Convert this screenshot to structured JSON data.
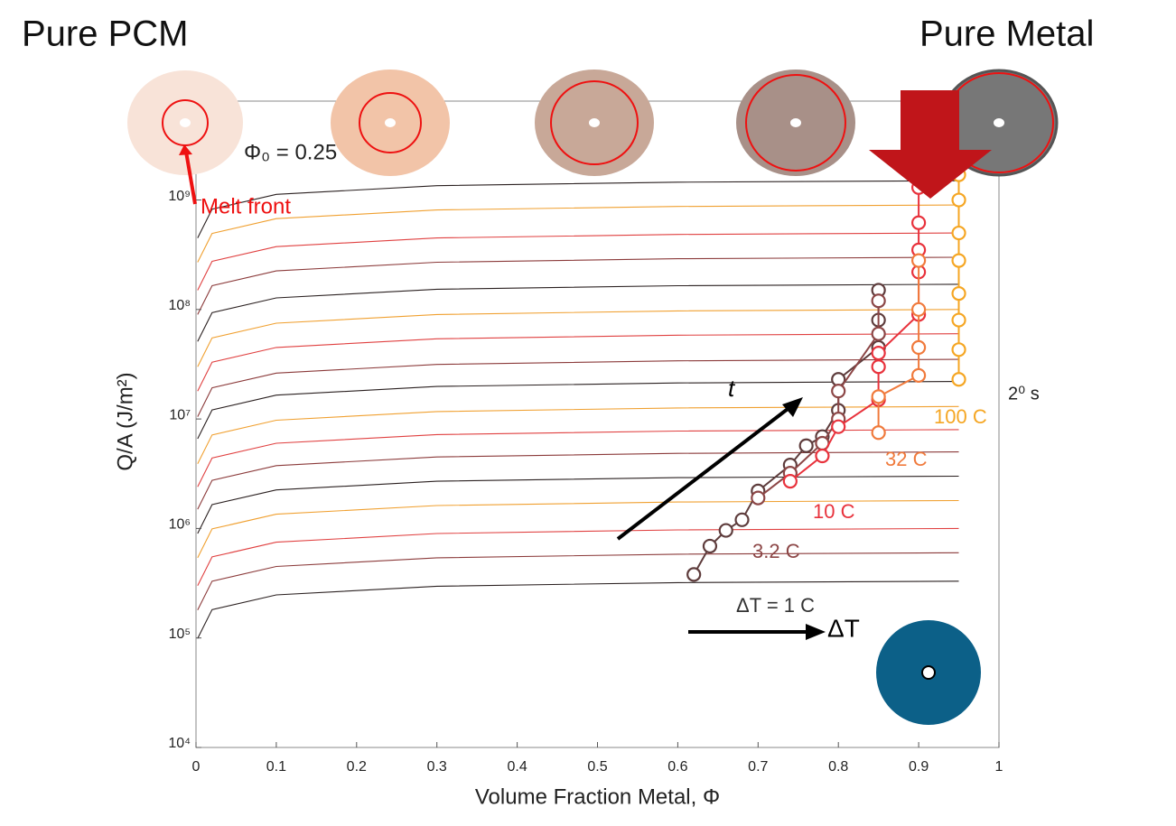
{
  "header": {
    "left": "Pure PCM",
    "right": "Pure Metal"
  },
  "chart_data": {
    "type": "scatter",
    "xlabel": "Volume Fraction Metal, Φ",
    "ylabel": "Q/A (J/m²)",
    "xlim": [
      0,
      1
    ],
    "ylim": [
      10000,
      8000000000
    ],
    "log_y": true,
    "xticks": [
      0,
      0.1,
      0.2,
      0.3,
      0.4,
      0.5,
      0.6,
      0.7,
      0.8,
      0.9,
      1
    ],
    "yticks": [
      {
        "value": 10000,
        "label": "10⁴"
      },
      {
        "value": 100000,
        "label": "10⁵"
      },
      {
        "value": 1000000,
        "label": "10⁶"
      },
      {
        "value": 10000000,
        "label": "10⁷"
      },
      {
        "value": 100000000,
        "label": "10⁸"
      },
      {
        "value": 1000000000,
        "label": "10⁹"
      }
    ],
    "annotations": {
      "phi0": "Φ₀ = 0.25",
      "melt_front": "Melt front",
      "time": "t",
      "delta_t": "ΔT",
      "seconds": "2⁰ s"
    },
    "background_curves": {
      "x": [
        0.002,
        0.02,
        0.1,
        0.3,
        0.6,
        0.95
      ],
      "colors": [
        "#2a2020",
        "#8b3a3a",
        "#e04040",
        "#f0a030"
      ],
      "values": [
        [
          99000.0,
          181500.0,
          247500.0,
          297000.0,
          320100.0,
          330000.0
        ],
        [
          180000.0,
          330000.0,
          450000.0,
          540000.0,
          582000.0,
          600000.0
        ],
        [
          300000.0,
          550000.0,
          750000.0,
          900000.0,
          970000.0,
          1000000.0
        ],
        [
          540000.0,
          990000.0,
          1350000.0,
          1620000.0,
          1746000.0,
          1800000.0
        ],
        [
          900000.0,
          1650000.0,
          2250000.0,
          2700000.0,
          2910000.0,
          3000000.0
        ],
        [
          1500000.0,
          2750000.0,
          3750000.0,
          4500000.0,
          4850000.0,
          5000000.0
        ],
        [
          2400000.0,
          4400000.0,
          6000000.0,
          7200000.0,
          7760000.0,
          8000000.0
        ],
        [
          3900000.0,
          7150000.0,
          9750000.0,
          11700000.0,
          12610000.0,
          13000000.0
        ],
        [
          6600000.0,
          12100000.0,
          16500000.0,
          19800000.0,
          21340000.0,
          22000000.0
        ],
        [
          10500000.0,
          19250000.0,
          26250000.0,
          31500000.0,
          33950000.0,
          35000000.0
        ],
        [
          18000000.0,
          33000000.0,
          45000000.0,
          54000000.0,
          58200000.0,
          60000000.0
        ],
        [
          30000000.0,
          55000000.0,
          75000000.0,
          90000000.0,
          97000000.0,
          100000000.0
        ],
        [
          51000000.0,
          93500000.0,
          127500000.0,
          153000000.0,
          164900000.0,
          170000000.0
        ],
        [
          90000000.0,
          165000000.0,
          225000000.0,
          270000000.0,
          291000000.0,
          300000000.0
        ],
        [
          150000000.0,
          275000000.0,
          375000000.0,
          450000000.0,
          485000000.0,
          500000000.0
        ],
        [
          270000000.0,
          495000000.0,
          675000000.0,
          810000000.0,
          873000000.0,
          900000000.0
        ],
        [
          450000000.0,
          825000000.0,
          1125000000.0,
          1350000000.0,
          1455000000.0,
          1500000000.0
        ]
      ]
    },
    "series": [
      {
        "name": "ΔT = 1 C",
        "color": "#5e3c3c",
        "x": [
          0.62,
          0.64,
          0.66,
          0.68,
          0.7,
          0.74,
          0.76,
          0.78,
          0.8,
          0.8,
          0.85,
          0.85,
          0.85
        ],
        "values": [
          380000.0,
          690000.0,
          960000.0,
          1200000.0,
          2200000.0,
          3800000.0,
          5700000.0,
          6900000.0,
          12000000.0,
          23000000.0,
          45000000.0,
          80000000.0,
          150000000.0
        ]
      },
      {
        "name": "3.2 C",
        "color": "#8c4646",
        "x": [
          0.7,
          0.74,
          0.78,
          0.8,
          0.8,
          0.85,
          0.85
        ],
        "values": [
          1900000.0,
          3200000.0,
          6000000.0,
          10000000.0,
          18000000.0,
          60000000.0,
          120000000.0
        ]
      },
      {
        "name": "10 C",
        "color": "#e8323c",
        "x": [
          0.74,
          0.78,
          0.8,
          0.85,
          0.85,
          0.85,
          0.9,
          0.9,
          0.9,
          0.9,
          0.9
        ],
        "values": [
          2700000.0,
          4600000.0,
          8500000.0,
          15000000.0,
          30000000.0,
          40000000.0,
          90000000.0,
          220000000.0,
          350000000.0,
          620000000.0,
          1300000000.0
        ]
      },
      {
        "name": "32 C",
        "color": "#f07a3c",
        "x": [
          0.85,
          0.85,
          0.9,
          0.9,
          0.9,
          0.9
        ],
        "values": [
          7500000.0,
          16000000.0,
          25000000.0,
          45000000.0,
          100000000.0,
          280000000.0
        ]
      },
      {
        "name": "100 C",
        "color": "#f5a623",
        "x": [
          0.95,
          0.95,
          0.95,
          0.95,
          0.95,
          0.95,
          0.95,
          0.95
        ],
        "values": [
          23000000.0,
          43000000.0,
          80000000.0,
          140000000.0,
          280000000.0,
          500000000.0,
          1000000000.0,
          1700000000.0
        ]
      }
    ]
  }
}
